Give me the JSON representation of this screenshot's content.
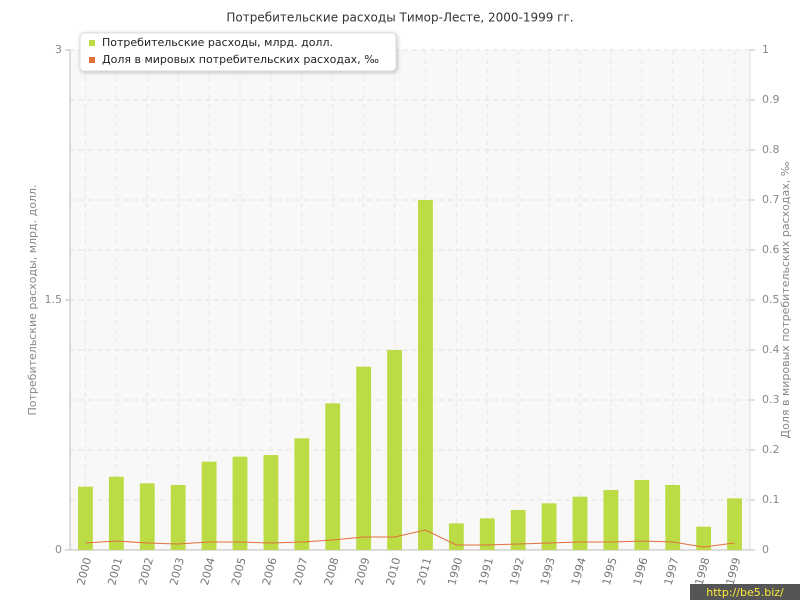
{
  "chart_data": {
    "type": "bar_line",
    "title": "Потребительские расходы Тимор-Лесте, 2000-1999 гг.",
    "y_label": "Потребительские расходы, млрд. долл.",
    "y2_label": "Доля в мировых потребительских расходах, ‰",
    "categories": [
      "2000",
      "2001",
      "2002",
      "2003",
      "2004",
      "2005",
      "2006",
      "2007",
      "2008",
      "2009",
      "2010",
      "2011",
      "1990",
      "1991",
      "1992",
      "1993",
      "1994",
      "1995",
      "1996",
      "1997",
      "1998",
      "1999"
    ],
    "series": [
      {
        "name": "Потребительские расходы, млрд. долл.",
        "color": "#bbdc45",
        "type": "bar",
        "values": [
          0.38,
          0.44,
          0.4,
          0.39,
          0.53,
          0.56,
          0.57,
          0.67,
          0.88,
          1.1,
          1.2,
          2.1,
          0.16,
          0.19,
          0.24,
          0.28,
          0.32,
          0.36,
          0.42,
          0.39,
          0.14,
          0.31
        ]
      },
      {
        "name": "Доля в мировых потребительских расходах, ‰",
        "color": "#e2703c",
        "type": "line",
        "axis": "y2",
        "values": [
          0.014,
          0.018,
          0.014,
          0.012,
          0.016,
          0.016,
          0.014,
          0.016,
          0.02,
          0.026,
          0.026,
          0.04,
          0.01,
          0.01,
          0.012,
          0.014,
          0.016,
          0.016,
          0.018,
          0.016,
          0.006,
          0.014
        ]
      }
    ],
    "ylim": [
      0,
      3
    ],
    "yticks": [
      0,
      1.5,
      3
    ],
    "y2lim": [
      0,
      1
    ],
    "y2ticks": [
      0,
      0.1,
      0.2,
      0.3,
      0.4,
      0.5,
      0.6,
      0.7,
      0.8,
      0.9,
      1
    ],
    "grid": true,
    "legend": "top-left",
    "watermark": "http://be5.biz/"
  }
}
